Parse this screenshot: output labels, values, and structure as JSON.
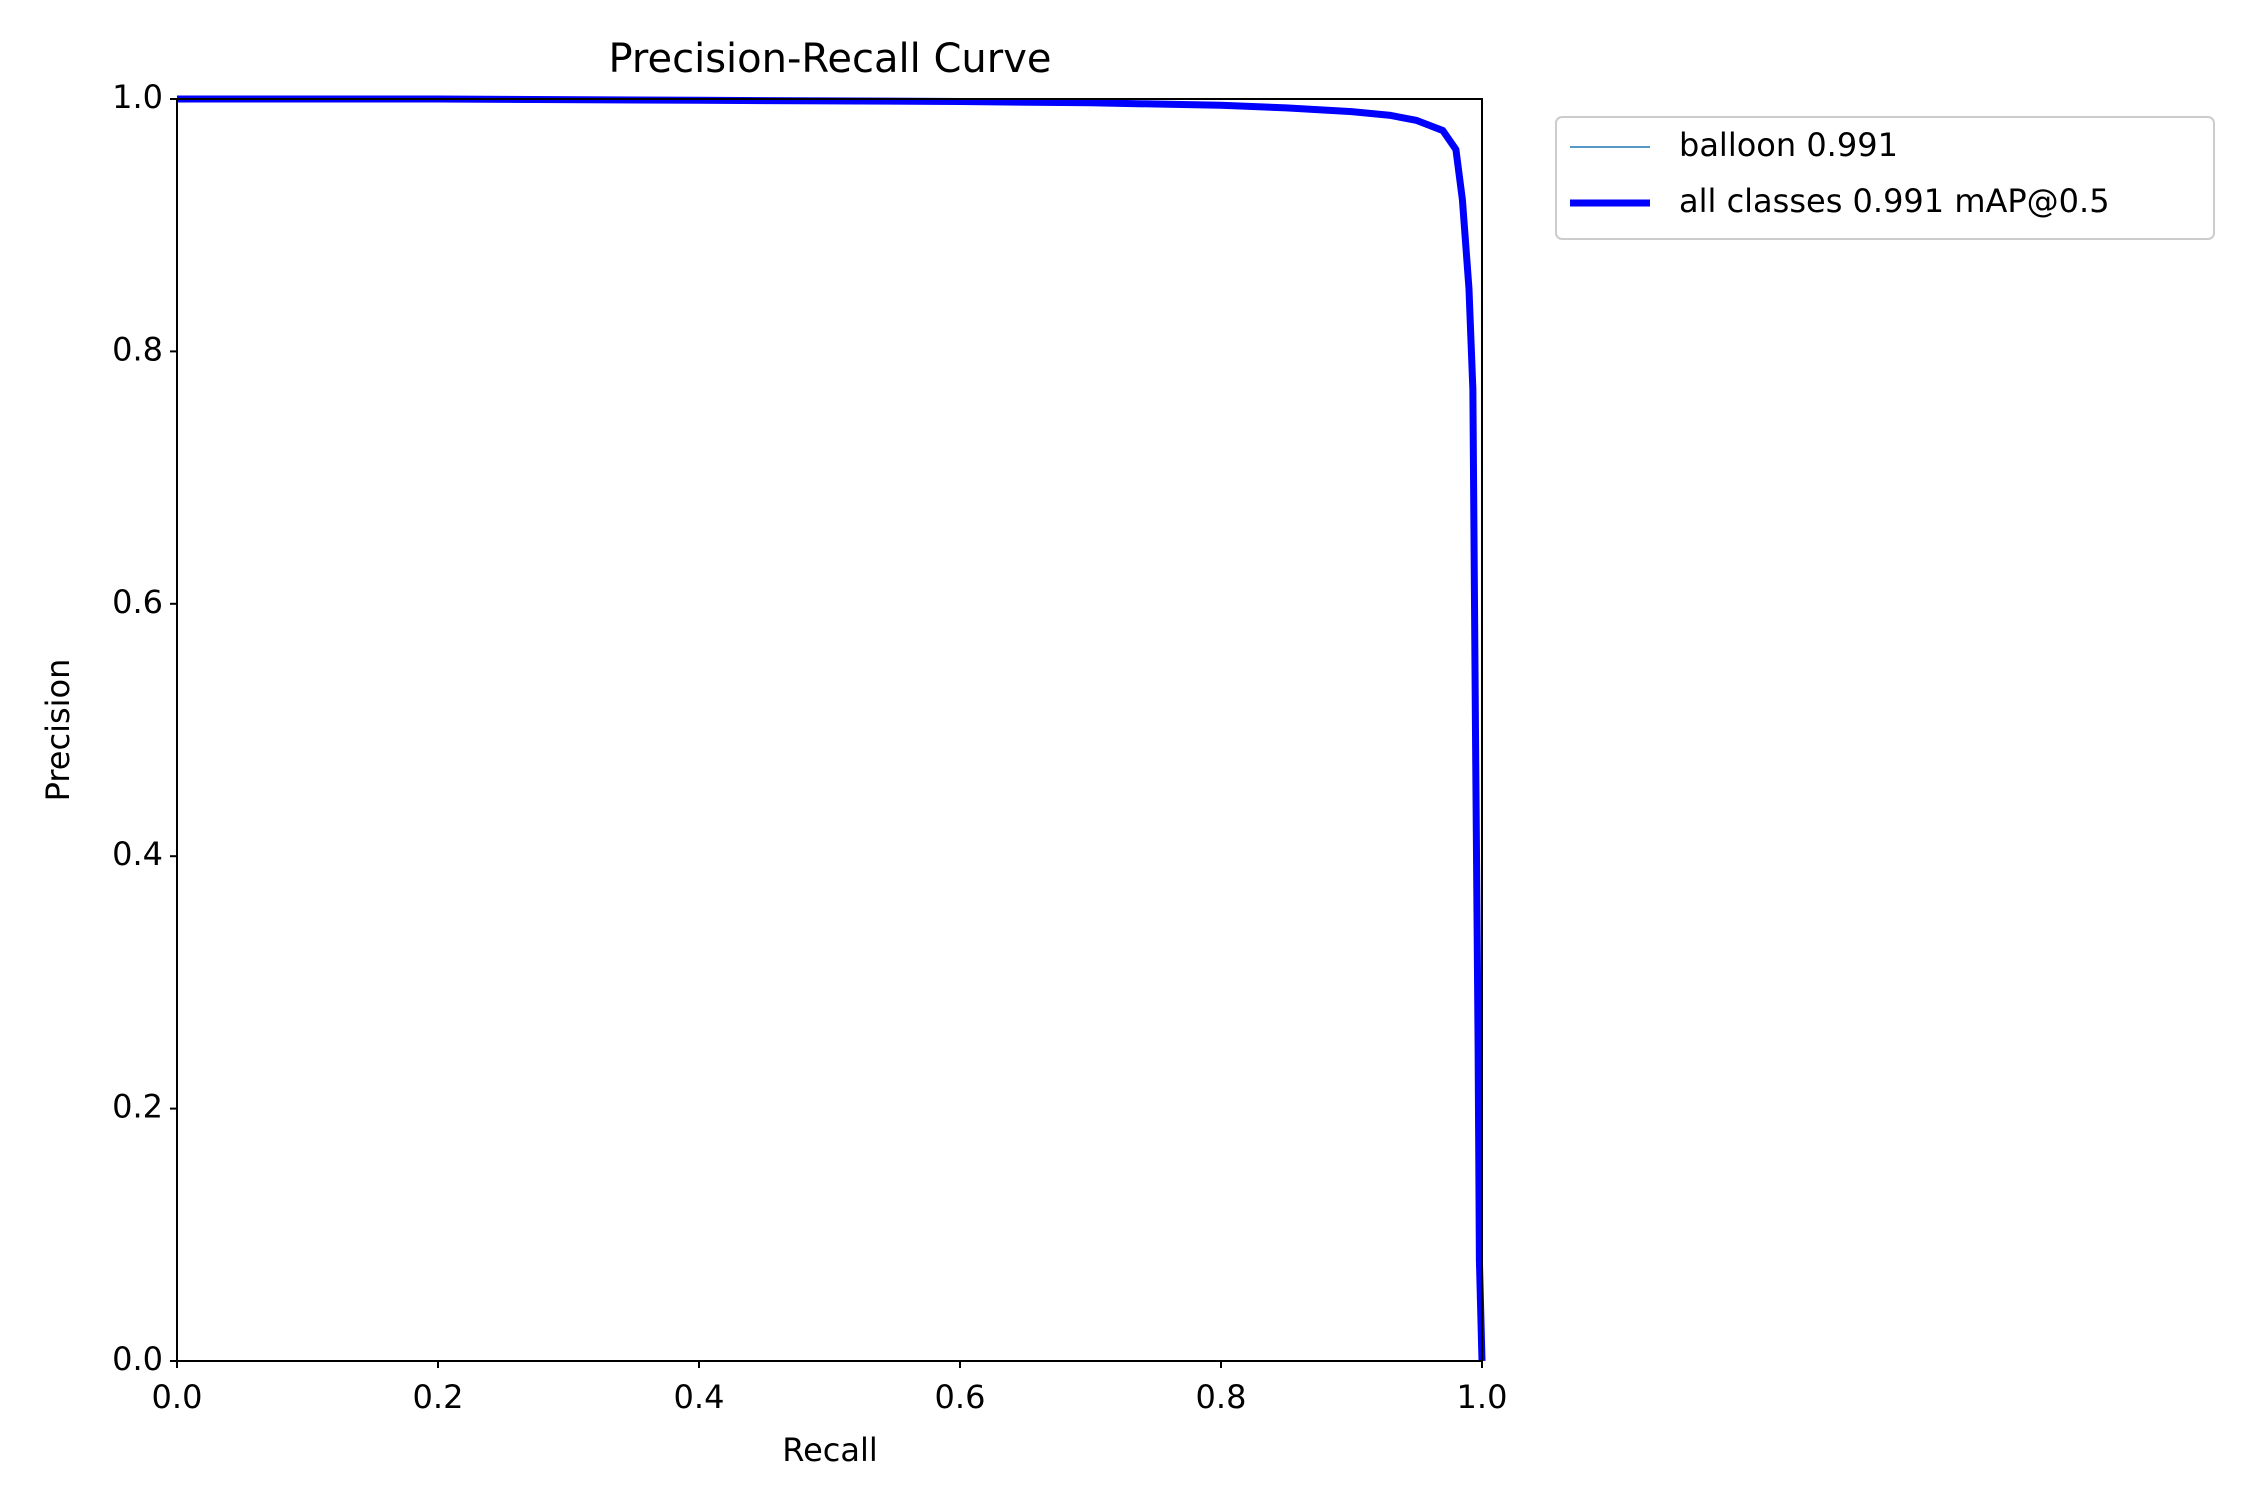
{
  "chart_data": {
    "type": "line",
    "title": "Precision-Recall Curve",
    "x_label": "Recall",
    "y_label": "Precision",
    "x": [
      0,
      0.2,
      0.4,
      0.6,
      0.7,
      0.8,
      0.85,
      0.9,
      0.93,
      0.95,
      0.97,
      0.98,
      0.985,
      0.99,
      0.993,
      0.995,
      0.997,
      0.998,
      1.0
    ],
    "series": [
      {
        "name": "balloon 0.991",
        "color": "#1f77b4",
        "width": 1.5,
        "values": [
          1,
          1,
          0.999,
          0.998,
          0.997,
          0.995,
          0.993,
          0.99,
          0.987,
          0.983,
          0.975,
          0.96,
          0.92,
          0.85,
          0.77,
          0.5,
          0.25,
          0.08,
          0
        ]
      },
      {
        "name": "all classes 0.991 mAP@0.5",
        "color": "#0000ff",
        "width": 7,
        "values": [
          1,
          1,
          0.999,
          0.998,
          0.997,
          0.995,
          0.993,
          0.99,
          0.987,
          0.983,
          0.975,
          0.96,
          0.92,
          0.85,
          0.77,
          0.5,
          0.25,
          0.08,
          0
        ]
      }
    ],
    "xlim": [
      0,
      1
    ],
    "ylim": [
      0,
      1
    ],
    "xticks": [
      {
        "value": 0,
        "label": "0.0"
      },
      0.2,
      0.4,
      0.6,
      0.8,
      {
        "value": 1,
        "label": "1.0"
      }
    ],
    "yticks": [
      {
        "value": 0,
        "label": "0.0"
      },
      0.2,
      0.4,
      0.6,
      0.8,
      {
        "value": 1,
        "label": "1.0"
      }
    ],
    "legend": "upper-right-outside",
    "grid": false
  }
}
